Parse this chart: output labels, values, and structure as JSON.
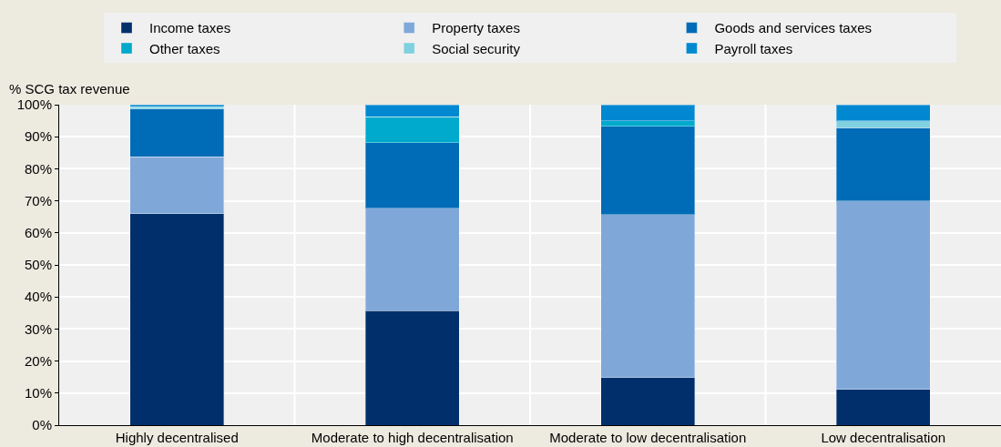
{
  "chart_data": {
    "type": "bar",
    "stacked": true,
    "ylabel": "% SCG tax revenue",
    "categories": [
      "Highly decentralised",
      "Moderate to high decentralisation",
      "Moderate to low decentralisation",
      "Low decentralisation"
    ],
    "series": [
      {
        "name": "Income taxes",
        "color": "#002f6c",
        "values": [
          66,
          35.7,
          14.9,
          11.1
        ]
      },
      {
        "name": "Property taxes",
        "color": "#7fa8d9",
        "values": [
          17.7,
          32,
          50.8,
          58.9
        ]
      },
      {
        "name": "Goods and services taxes",
        "color": "#006bb6",
        "values": [
          15,
          20.4,
          27.6,
          22.8
        ]
      },
      {
        "name": "Other taxes",
        "color": "#00aacc",
        "values": [
          0,
          8.1,
          1.7,
          0
        ]
      },
      {
        "name": "Social security",
        "color": "#7fd1e0",
        "values": [
          0.7,
          0,
          0,
          2.1
        ]
      },
      {
        "name": "Payroll taxes",
        "color": "#0088d1",
        "values": [
          0.6,
          3.8,
          5,
          5.1
        ]
      }
    ],
    "ylim": [
      0,
      100
    ],
    "yticks": [
      {
        "value": 0,
        "label": "0%"
      },
      {
        "value": 10,
        "label": "10%"
      },
      {
        "value": 20,
        "label": "20%"
      },
      {
        "value": 30,
        "label": "30%"
      },
      {
        "value": 40,
        "label": "40%"
      },
      {
        "value": 50,
        "label": "50%"
      },
      {
        "value": 60,
        "label": "60%"
      },
      {
        "value": 70,
        "label": "70%"
      },
      {
        "value": 80,
        "label": "80%"
      },
      {
        "value": 90,
        "label": "90%"
      },
      {
        "value": 100,
        "label": "100%"
      }
    ],
    "grid": "y",
    "legend": "top"
  }
}
